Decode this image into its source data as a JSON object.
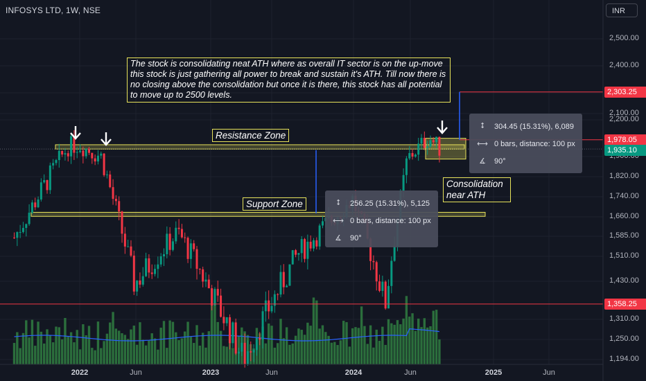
{
  "header": {
    "symbol": "INFOSYS LTD, 1W, NSE",
    "currency": "INR"
  },
  "annotation_note": "The stock is consolidating neat ATH where as overall IT sector is on the up-move this stock is just gathering all power to break and sustain it's ATH. Till now there is no closing above the consolidation but once it is there, this stock has all potential to move up to 2500 levels.",
  "zones": {
    "resistance_label": "Resistance Zone",
    "support_label": "Support Zone",
    "consolidation_label": "Consolidation near ATH"
  },
  "measure_boxes": [
    {
      "change": "304.45 (15.31%), 6,089",
      "distance": "0 bars, distance: 100 px",
      "angle": "90°"
    },
    {
      "change": "256.25 (15.31%), 5,125",
      "distance": "0 bars, distance: 100 px",
      "angle": "90°"
    }
  ],
  "price_tags": [
    {
      "label": "2,303.25",
      "color": "#f23645",
      "value": 2303.25
    },
    {
      "label": "1,978.05",
      "color": "#f23645",
      "value": 1978.05
    },
    {
      "label": "1,935.10",
      "color": "#089981",
      "value": 1935.1
    },
    {
      "label": "1,358.25",
      "color": "#f23645",
      "value": 1358.25
    }
  ],
  "chart_data": {
    "type": "candlestick",
    "title": "INFOSYS LTD, 1W, NSE",
    "y_axis_ticks": [
      "2,500.00",
      "2,400.00",
      "2,300.00",
      "2,200.00",
      "2,100.00",
      "1,900.00",
      "1,820.00",
      "1,740.00",
      "1,660.00",
      "1,585.00",
      "1,510.00",
      "1,430.00",
      "1,310.00",
      "1,250.00",
      "1,194.00"
    ],
    "x_axis_ticks": [
      {
        "label": "2022",
        "year": true
      },
      {
        "label": "Jun",
        "year": false
      },
      {
        "label": "2023",
        "year": true
      },
      {
        "label": "Jun",
        "year": false
      },
      {
        "label": "2024",
        "year": true
      },
      {
        "label": "Jun",
        "year": false
      },
      {
        "label": "2025",
        "year": true
      },
      {
        "label": "Jun",
        "year": false
      }
    ],
    "ylim": [
      1194,
      2550
    ],
    "resistance_zone": [
      1935,
      1955
    ],
    "support_zone": [
      1662,
      1678
    ],
    "horizontal_levels": [
      2303.25,
      1978.05,
      1358.25
    ],
    "last_price": 1935.1,
    "key_points": [
      {
        "date": "2021-07",
        "price": 1580
      },
      {
        "date": "2021-12",
        "price": 1950
      },
      {
        "date": "2022-01",
        "price": 1953
      },
      {
        "date": "2022-03",
        "price": 1900
      },
      {
        "date": "2022-06",
        "price": 1420
      },
      {
        "date": "2022-10",
        "price": 1600
      },
      {
        "date": "2023-04",
        "price": 1195
      },
      {
        "date": "2023-09",
        "price": 1520
      },
      {
        "date": "2024-02",
        "price": 1730
      },
      {
        "date": "2024-05",
        "price": 1360
      },
      {
        "date": "2024-07",
        "price": 1890
      },
      {
        "date": "2024-09",
        "price": 1990
      },
      {
        "date": "2024-10",
        "price": 1935.1
      }
    ],
    "grid": true,
    "volume": true,
    "volume_ma_color": "#2962ff"
  },
  "colors": {
    "up": "#089981",
    "down": "#f23645",
    "zone": "#e8e35a",
    "measure_line": "#2962ff",
    "background": "#131722",
    "volume_up": "#2a6e3f",
    "volume_down": "#2a6e3f"
  }
}
